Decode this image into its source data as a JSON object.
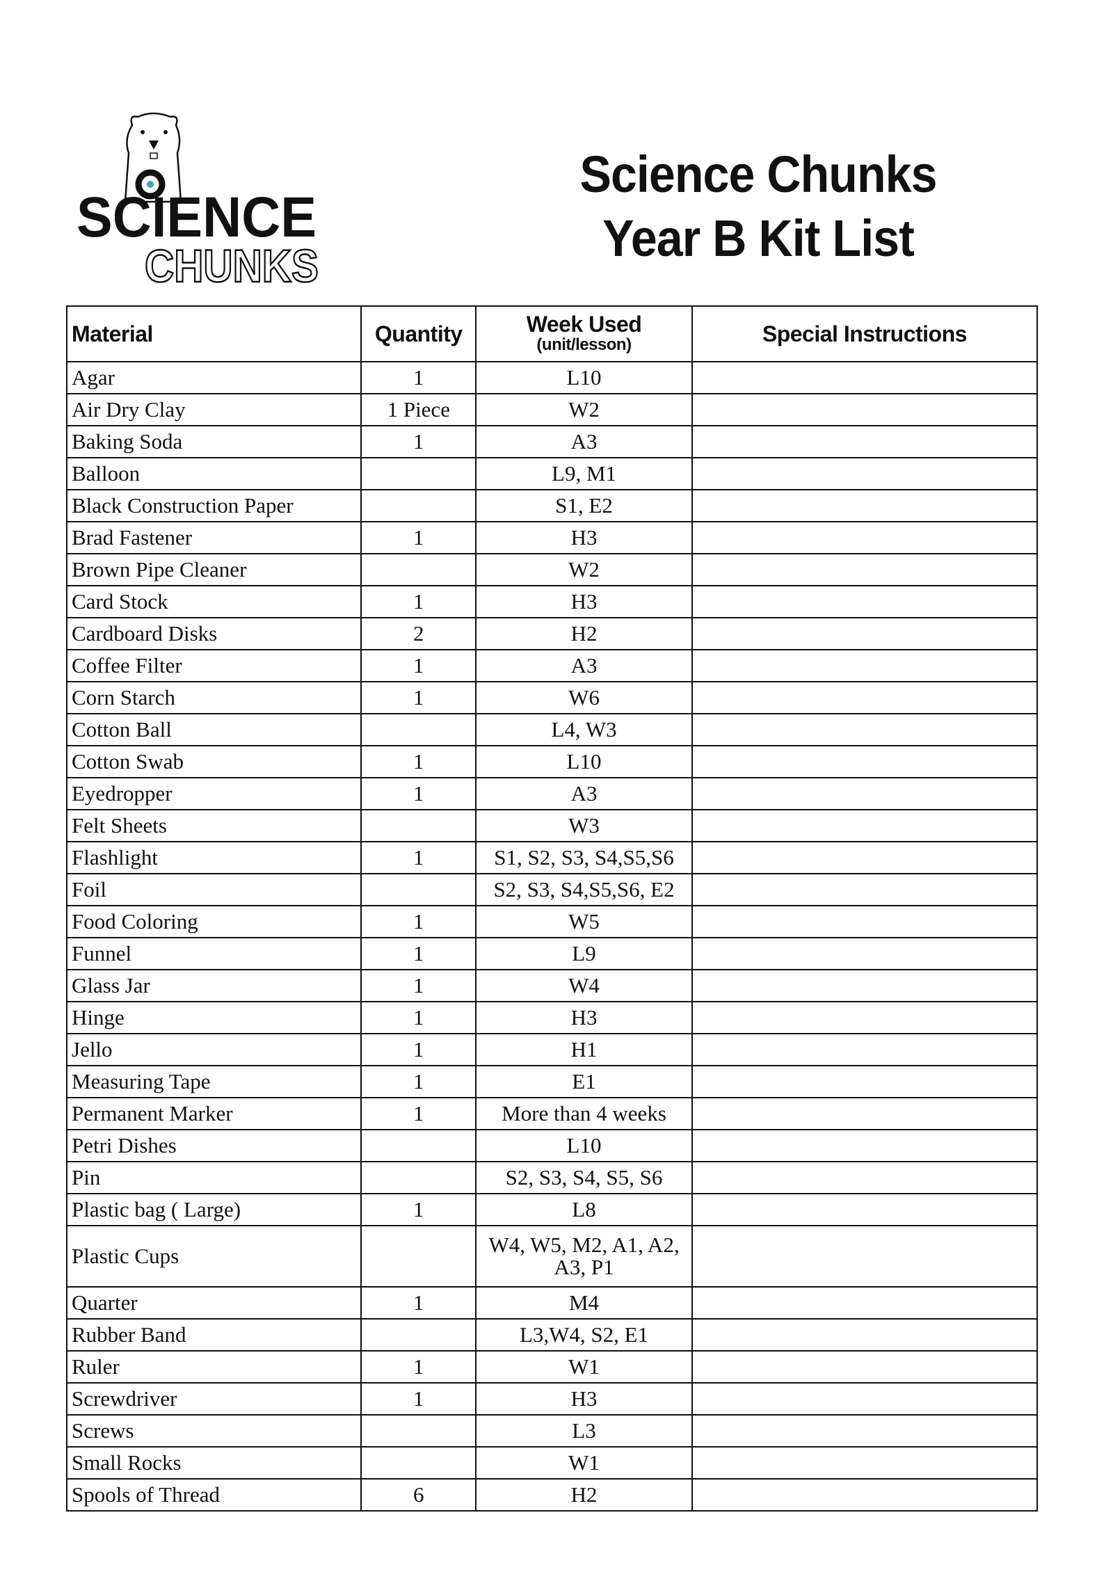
{
  "logo": {
    "text_top": "SCIENCE",
    "text_bottom": "CHUNKS",
    "icon": "polar-bear-with-magnifier-icon"
  },
  "title": {
    "line1": "Science Chunks",
    "line2": "Year B Kit List"
  },
  "table": {
    "headers": {
      "material": "Material",
      "quantity": "Quantity",
      "week": "Week Used",
      "week_sub": "(unit/lesson)",
      "instructions": "Special Instructions"
    },
    "rows": [
      {
        "material": "Agar",
        "quantity": "1",
        "week": "L10",
        "instructions": ""
      },
      {
        "material": "Air Dry Clay",
        "quantity": "1 Piece",
        "week": "W2",
        "instructions": ""
      },
      {
        "material": "Baking Soda",
        "quantity": "1",
        "week": "A3",
        "instructions": ""
      },
      {
        "material": "Balloon",
        "quantity": "",
        "week": "L9, M1",
        "instructions": ""
      },
      {
        "material": "Black Construction Paper",
        "quantity": "",
        "week": "S1, E2",
        "instructions": ""
      },
      {
        "material": "Brad Fastener",
        "quantity": "1",
        "week": "H3",
        "instructions": ""
      },
      {
        "material": "Brown Pipe Cleaner",
        "quantity": "",
        "week": "W2",
        "instructions": ""
      },
      {
        "material": "Card Stock",
        "quantity": "1",
        "week": "H3",
        "instructions": ""
      },
      {
        "material": "Cardboard Disks",
        "quantity": "2",
        "week": "H2",
        "instructions": ""
      },
      {
        "material": "Coffee Filter",
        "quantity": "1",
        "week": "A3",
        "instructions": ""
      },
      {
        "material": "Corn Starch",
        "quantity": "1",
        "week": "W6",
        "instructions": ""
      },
      {
        "material": "Cotton Ball",
        "quantity": "",
        "week": "L4, W3",
        "instructions": ""
      },
      {
        "material": "Cotton Swab",
        "quantity": "1",
        "week": "L10",
        "instructions": ""
      },
      {
        "material": "Eyedropper",
        "quantity": "1",
        "week": "A3",
        "instructions": ""
      },
      {
        "material": "Felt Sheets",
        "quantity": "",
        "week": "W3",
        "instructions": ""
      },
      {
        "material": "Flashlight",
        "quantity": "1",
        "week": "S1, S2, S3, S4,S5,S6",
        "instructions": ""
      },
      {
        "material": "Foil",
        "quantity": "",
        "week": "S2, S3, S4,S5,S6, E2",
        "instructions": ""
      },
      {
        "material": "Food Coloring",
        "quantity": "1",
        "week": "W5",
        "instructions": ""
      },
      {
        "material": "Funnel",
        "quantity": "1",
        "week": "L9",
        "instructions": ""
      },
      {
        "material": "Glass Jar",
        "quantity": "1",
        "week": "W4",
        "instructions": ""
      },
      {
        "material": "Hinge",
        "quantity": "1",
        "week": "H3",
        "instructions": ""
      },
      {
        "material": "Jello",
        "quantity": "1",
        "week": "H1",
        "instructions": ""
      },
      {
        "material": "Measuring Tape",
        "quantity": "1",
        "week": "E1",
        "instructions": ""
      },
      {
        "material": "Permanent Marker",
        "quantity": "1",
        "week": "More than 4 weeks",
        "instructions": ""
      },
      {
        "material": "Petri Dishes",
        "quantity": "",
        "week": "L10",
        "instructions": ""
      },
      {
        "material": "Pin",
        "quantity": "",
        "week": "S2, S3, S4, S5, S6",
        "instructions": ""
      },
      {
        "material": "Plastic bag ( Large)",
        "quantity": "1",
        "week": "L8",
        "instructions": ""
      },
      {
        "material": "Plastic Cups",
        "quantity": "",
        "week": "W4, W5, M2, A1, A2, A3, P1",
        "instructions": ""
      },
      {
        "material": "Quarter",
        "quantity": "1",
        "week": "M4",
        "instructions": ""
      },
      {
        "material": "Rubber Band",
        "quantity": "",
        "week": "L3,W4, S2, E1",
        "instructions": ""
      },
      {
        "material": "Ruler",
        "quantity": "1",
        "week": "W1",
        "instructions": ""
      },
      {
        "material": "Screwdriver",
        "quantity": "1",
        "week": "H3",
        "instructions": ""
      },
      {
        "material": "Screws",
        "quantity": "",
        "week": "L3",
        "instructions": ""
      },
      {
        "material": "Small Rocks",
        "quantity": "",
        "week": "W1",
        "instructions": ""
      },
      {
        "material": "Spools of Thread",
        "quantity": "6",
        "week": "H2",
        "instructions": ""
      }
    ]
  }
}
